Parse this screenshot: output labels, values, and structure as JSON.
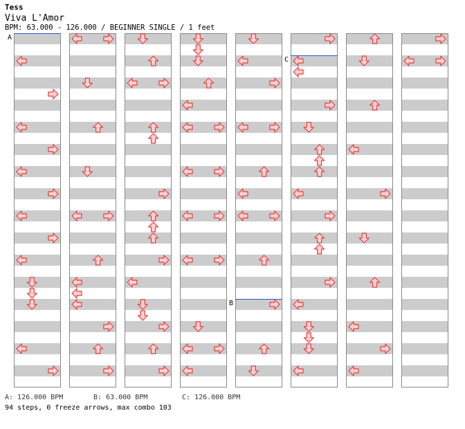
{
  "header": {
    "artist": "Tess",
    "title": "Viva L'Amor",
    "info": "BPM: 63.000 - 126.000 / BEGINNER SINGLE / 1 feet"
  },
  "bpm_changes": [
    {
      "label": "A",
      "text": "A: 126.000 BPM",
      "column": 0,
      "row": 0
    },
    {
      "label": "B",
      "text": "B: 63.000 BPM",
      "column": 4,
      "row": 24
    },
    {
      "label": "C",
      "text": "C: 126.000 BPM",
      "column": 5,
      "row": 2
    }
  ],
  "summary": "94 steps, 0 freeze arrows, max combo 103",
  "colors": {
    "arrow_fill": "#ffd0d0",
    "arrow_stroke": "#e04040",
    "stripe": "#cccccc",
    "bpm_line": "#3355cc",
    "column_border": "#888888"
  },
  "columns": [
    {
      "notes": [
        [
          2,
          3
        ],
        [
          5,
          7
        ],
        [
          8,
          3
        ],
        [
          10,
          7
        ],
        [
          12,
          3
        ],
        [
          14,
          7
        ],
        [
          16,
          3
        ],
        [
          18,
          7
        ],
        [
          20,
          3
        ],
        [
          22,
          5
        ],
        [
          23,
          5
        ],
        [
          24,
          5
        ],
        [
          28,
          3
        ],
        [
          30,
          7
        ]
      ]
    },
    {
      "notes": [
        [
          0,
          3
        ],
        [
          0,
          7
        ],
        [
          4,
          5
        ],
        [
          8,
          6
        ],
        [
          12,
          5
        ],
        [
          16,
          3
        ],
        [
          16,
          7
        ],
        [
          20,
          6
        ],
        [
          22,
          3
        ],
        [
          23,
          3
        ],
        [
          24,
          3
        ],
        [
          26,
          7
        ],
        [
          28,
          6
        ],
        [
          30,
          7
        ]
      ]
    },
    {
      "notes": [
        [
          0,
          5
        ],
        [
          2,
          6
        ],
        [
          4,
          3
        ],
        [
          4,
          7
        ],
        [
          8,
          6
        ],
        [
          9,
          6
        ],
        [
          14,
          7
        ],
        [
          16,
          6
        ],
        [
          17,
          6
        ],
        [
          18,
          6
        ],
        [
          20,
          7
        ],
        [
          22,
          3
        ],
        [
          24,
          5
        ],
        [
          25,
          5
        ],
        [
          26,
          7
        ],
        [
          28,
          6
        ],
        [
          30,
          7
        ]
      ]
    },
    {
      "notes": [
        [
          0,
          5
        ],
        [
          1,
          5
        ],
        [
          2,
          5
        ],
        [
          4,
          6
        ],
        [
          6,
          3
        ],
        [
          8,
          3
        ],
        [
          8,
          7
        ],
        [
          12,
          3
        ],
        [
          12,
          7
        ],
        [
          16,
          3
        ],
        [
          16,
          7
        ],
        [
          20,
          3
        ],
        [
          20,
          7
        ],
        [
          26,
          5
        ],
        [
          28,
          3
        ],
        [
          28,
          7
        ],
        [
          30,
          3
        ]
      ]
    },
    {
      "notes": [
        [
          0,
          5
        ],
        [
          2,
          3
        ],
        [
          4,
          7
        ],
        [
          8,
          3
        ],
        [
          8,
          7
        ],
        [
          12,
          6
        ],
        [
          14,
          3
        ],
        [
          16,
          3
        ],
        [
          16,
          7
        ],
        [
          20,
          6
        ],
        [
          24,
          7
        ],
        [
          28,
          6
        ],
        [
          30,
          5
        ]
      ]
    },
    {
      "notes": [
        [
          0,
          7
        ],
        [
          2,
          3
        ],
        [
          3,
          3
        ],
        [
          6,
          7
        ],
        [
          8,
          5
        ],
        [
          10,
          6
        ],
        [
          11,
          6
        ],
        [
          12,
          6
        ],
        [
          14,
          3
        ],
        [
          16,
          7
        ],
        [
          18,
          6
        ],
        [
          19,
          6
        ],
        [
          22,
          7
        ],
        [
          24,
          3
        ],
        [
          26,
          5
        ],
        [
          27,
          5
        ],
        [
          28,
          5
        ],
        [
          30,
          3
        ]
      ]
    },
    {
      "notes": [
        [
          0,
          6
        ],
        [
          2,
          5
        ],
        [
          6,
          6
        ],
        [
          10,
          3
        ],
        [
          14,
          7
        ],
        [
          18,
          5
        ],
        [
          22,
          6
        ],
        [
          26,
          3
        ],
        [
          28,
          7
        ],
        [
          30,
          3
        ]
      ]
    },
    {
      "notes": [
        [
          0,
          7
        ],
        [
          2,
          3
        ],
        [
          2,
          7
        ]
      ]
    }
  ]
}
